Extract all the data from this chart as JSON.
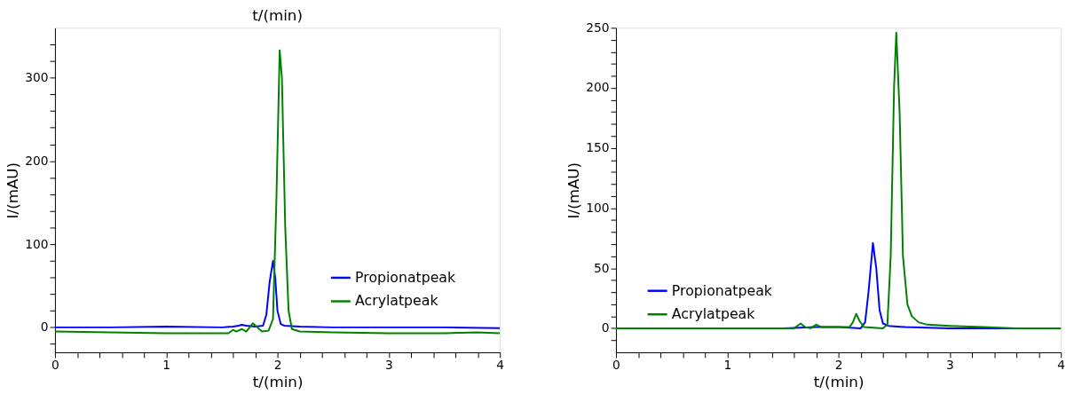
{
  "chart_data": [
    {
      "type": "line",
      "title": "t/(min)",
      "xlabel": "t/(min)",
      "ylabel": "I/(mAU)",
      "xlim": [
        0,
        4
      ],
      "ylim": [
        -30,
        360
      ],
      "xticks": [
        0,
        {
          "value": 0.2,
          "label": null
        },
        {
          "value": 0.4,
          "label": null
        },
        {
          "value": 0.6,
          "label": null
        },
        {
          "value": 0.8,
          "label": null
        },
        1,
        {
          "value": 1.2,
          "label": null
        },
        {
          "value": 1.4,
          "label": null
        },
        {
          "value": 1.6,
          "label": null
        },
        {
          "value": 1.8,
          "label": null
        },
        2,
        {
          "value": 2.2,
          "label": null
        },
        {
          "value": 2.4,
          "label": null
        },
        {
          "value": 2.6,
          "label": null
        },
        {
          "value": 2.8,
          "label": null
        },
        3,
        {
          "value": 3.2,
          "label": null
        },
        {
          "value": 3.4,
          "label": null
        },
        {
          "value": 3.6,
          "label": null
        },
        {
          "value": 3.8,
          "label": null
        },
        4
      ],
      "yticks": [
        {
          "value": -20,
          "label": null
        },
        0,
        {
          "value": 20,
          "label": null
        },
        {
          "value": 40,
          "label": null
        },
        {
          "value": 60,
          "label": null
        },
        {
          "value": 80,
          "label": null
        },
        100,
        {
          "value": 120,
          "label": null
        },
        {
          "value": 140,
          "label": null
        },
        {
          "value": 160,
          "label": null
        },
        {
          "value": 180,
          "label": null
        },
        200,
        {
          "value": 220,
          "label": null
        },
        {
          "value": 240,
          "label": null
        },
        {
          "value": 260,
          "label": null
        },
        {
          "value": 280,
          "label": null
        },
        300,
        {
          "value": 320,
          "label": null
        },
        {
          "value": 340,
          "label": null
        }
      ],
      "grid": false,
      "legend": "bottom right",
      "line_style": "solid",
      "marker": "none",
      "series": [
        {
          "name": "Propionatpeak",
          "color": "#0000ff",
          "x": [
            0,
            0.5,
            1,
            1.5,
            1.6,
            1.65,
            1.68,
            1.72,
            1.8,
            1.87,
            1.9,
            1.93,
            1.96,
            1.98,
            2.0,
            2.03,
            2.06,
            2.2,
            2.5,
            3,
            3.5,
            4
          ],
          "values": [
            0,
            0,
            1,
            0,
            1,
            2,
            3,
            2,
            1,
            2,
            15,
            55,
            80,
            60,
            20,
            4,
            2,
            1,
            0,
            0,
            0,
            -1
          ]
        },
        {
          "name": "Acrylatpeak",
          "color": "#008000",
          "x": [
            0,
            0.5,
            1,
            1.5,
            1.56,
            1.6,
            1.63,
            1.68,
            1.72,
            1.78,
            1.82,
            1.86,
            1.92,
            1.96,
            1.99,
            2.02,
            2.04,
            2.07,
            2.1,
            2.13,
            2.2,
            2.5,
            3,
            3.5,
            3.8,
            4
          ],
          "values": [
            -5,
            -6,
            -7,
            -7,
            -7,
            -3,
            -5,
            -2,
            -5,
            5,
            0,
            -5,
            -4,
            10,
            150,
            333,
            300,
            120,
            20,
            -2,
            -5,
            -6,
            -7,
            -7,
            -6,
            -7
          ]
        }
      ]
    },
    {
      "type": "line",
      "xlabel": "t/(min)",
      "ylabel": "I/(mAU)",
      "xlim": [
        0,
        4
      ],
      "ylim": [
        -20,
        250
      ],
      "xticks": [
        0,
        {
          "value": 0.2,
          "label": null
        },
        {
          "value": 0.4,
          "label": null
        },
        {
          "value": 0.6,
          "label": null
        },
        {
          "value": 0.8,
          "label": null
        },
        1,
        {
          "value": 1.2,
          "label": null
        },
        {
          "value": 1.4,
          "label": null
        },
        {
          "value": 1.6,
          "label": null
        },
        {
          "value": 1.8,
          "label": null
        },
        2,
        {
          "value": 2.2,
          "label": null
        },
        {
          "value": 2.4,
          "label": null
        },
        {
          "value": 2.6,
          "label": null
        },
        {
          "value": 2.8,
          "label": null
        },
        3,
        {
          "value": 3.2,
          "label": null
        },
        {
          "value": 3.4,
          "label": null
        },
        {
          "value": 3.6,
          "label": null
        },
        {
          "value": 3.8,
          "label": null
        },
        4
      ],
      "yticks": [
        {
          "value": -10,
          "label": null
        },
        0,
        {
          "value": 10,
          "label": null
        },
        {
          "value": 20,
          "label": null
        },
        {
          "value": 30,
          "label": null
        },
        {
          "value": 40,
          "label": null
        },
        50,
        {
          "value": 60,
          "label": null
        },
        {
          "value": 70,
          "label": null
        },
        {
          "value": 80,
          "label": null
        },
        {
          "value": 90,
          "label": null
        },
        100,
        {
          "value": 110,
          "label": null
        },
        {
          "value": 120,
          "label": null
        },
        {
          "value": 130,
          "label": null
        },
        {
          "value": 140,
          "label": null
        },
        150,
        {
          "value": 160,
          "label": null
        },
        {
          "value": 170,
          "label": null
        },
        {
          "value": 180,
          "label": null
        },
        {
          "value": 190,
          "label": null
        },
        200,
        {
          "value": 210,
          "label": null
        },
        {
          "value": 220,
          "label": null
        },
        {
          "value": 230,
          "label": null
        },
        {
          "value": 240,
          "label": null
        },
        250
      ],
      "grid": false,
      "legend": "bottom left",
      "line_style": "solid",
      "marker": "none",
      "series": [
        {
          "name": "Propionatpeak",
          "color": "#0000ff",
          "x": [
            0,
            1.5,
            1.8,
            2.0,
            2.2,
            2.24,
            2.27,
            2.31,
            2.34,
            2.37,
            2.4,
            2.45,
            2.6,
            3,
            4
          ],
          "values": [
            0,
            0,
            1,
            1,
            0,
            5,
            30,
            71,
            50,
            15,
            4,
            2,
            1,
            0,
            0
          ]
        },
        {
          "name": "Acrylatpeak",
          "color": "#008000",
          "x": [
            0,
            1.6,
            1.63,
            1.66,
            1.7,
            1.75,
            1.8,
            1.85,
            2.1,
            2.13,
            2.16,
            2.19,
            2.23,
            2.4,
            2.44,
            2.47,
            2.5,
            2.52,
            2.55,
            2.58,
            2.62,
            2.66,
            2.72,
            2.8,
            3.0,
            3.3,
            3.6,
            4
          ],
          "values": [
            0,
            0,
            2,
            4,
            1,
            0,
            3,
            1,
            1,
            5,
            12,
            6,
            1,
            0,
            3,
            60,
            200,
            246,
            180,
            60,
            20,
            10,
            5,
            3,
            2,
            1,
            0,
            0
          ]
        }
      ]
    }
  ]
}
